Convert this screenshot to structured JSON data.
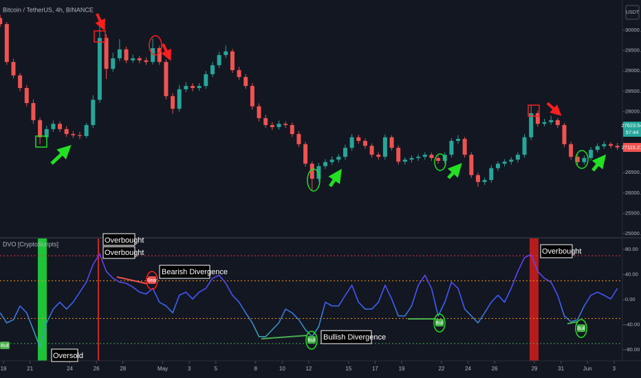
{
  "header": {
    "symbol": "Bitcoin / TetherUS, 4h, BINANCE",
    "currency": "USDT",
    "price_labels": [
      "27623.54",
      "57:44",
      "27115.21"
    ]
  },
  "chart_data": [
    {
      "type": "candlestick",
      "up_color": "#26a69a",
      "down_color": "#ef5350",
      "x": [
        -0.25,
        0.25,
        0.75,
        1.25,
        1.75,
        2.25,
        2.75,
        3.25,
        3.75,
        4.25,
        4.75,
        5.25,
        5.75,
        6.25,
        6.75,
        7.25,
        7.75,
        8.25,
        8.75,
        9.25,
        9.75,
        10.25,
        10.75,
        11.25,
        11.75,
        12.25,
        12.75,
        13.25,
        13.75,
        14.25,
        14.75,
        15.25,
        15.75,
        16.25,
        16.75,
        17.25,
        17.75,
        18.25,
        18.75,
        19.25,
        19.75,
        20.25,
        20.75,
        21.25,
        21.75,
        22.25,
        22.75,
        23.25,
        23.75,
        24.25,
        24.75,
        25.25,
        25.75,
        26.25,
        26.75,
        27.25,
        27.75,
        28.25,
        28.75,
        29.25,
        29.75,
        30.25,
        30.75,
        31.25,
        31.75,
        32.25,
        32.75,
        33.25,
        33.75,
        34.25,
        34.75,
        35.25,
        35.75,
        36.25,
        36.75,
        37.25,
        37.75,
        38.25,
        38.75,
        39.25,
        39.75,
        40.25,
        40.75,
        41.25,
        41.75,
        42.25,
        42.75,
        43.25,
        43.75,
        44.25,
        44.75,
        45.25,
        45.75,
        46.25
      ],
      "open": [
        30300,
        30150,
        29220,
        28890,
        28580,
        28210,
        27790,
        27370,
        27570,
        27700,
        27570,
        27450,
        27420,
        27400,
        27670,
        28290,
        29810,
        29050,
        29310,
        29530,
        29260,
        29310,
        29260,
        29220,
        29560,
        29220,
        28380,
        28070,
        28550,
        28630,
        28580,
        28630,
        28920,
        29140,
        29390,
        29480,
        29020,
        28850,
        28630,
        28130,
        27840,
        27670,
        27620,
        27700,
        27670,
        27450,
        27200,
        26720,
        26350,
        26660,
        26760,
        26820,
        26890,
        27110,
        27370,
        27280,
        27160,
        26940,
        26890,
        27370,
        27110,
        26770,
        26820,
        26860,
        26890,
        26940,
        26860,
        26790,
        26940,
        27280,
        27330,
        26940,
        26440,
        26270,
        26320,
        26610,
        26720,
        26770,
        26820,
        26940,
        27370,
        27960,
        27700,
        27740,
        27790,
        27670,
        27200,
        26890,
        26760,
        26860,
        27060,
        27150,
        27200,
        27160
      ],
      "high": [
        30380,
        30200,
        29300,
        28950,
        28650,
        28300,
        27850,
        27650,
        27780,
        27760,
        27640,
        27520,
        27500,
        27720,
        28400,
        30250,
        29900,
        29450,
        29780,
        29600,
        29400,
        29370,
        29330,
        29800,
        29620,
        29280,
        28450,
        28650,
        28720,
        28700,
        28700,
        29000,
        29220,
        29470,
        29620,
        29540,
        29100,
        28920,
        28700,
        28200,
        27920,
        27740,
        27780,
        27760,
        27730,
        27520,
        27260,
        26780,
        26740,
        26830,
        26900,
        26960,
        27190,
        27450,
        27430,
        27340,
        27220,
        27000,
        27440,
        27420,
        27170,
        26880,
        26920,
        26950,
        27000,
        26990,
        26920,
        27000,
        27350,
        27420,
        27380,
        27000,
        26500,
        26380,
        26680,
        26780,
        26830,
        26880,
        27000,
        27450,
        28150,
        28020,
        27820,
        27900,
        27840,
        27720,
        27260,
        26940,
        26920,
        27130,
        27220,
        27270,
        27250,
        27230
      ],
      "low": [
        30080,
        29150,
        28820,
        28500,
        28130,
        27700,
        27200,
        27300,
        27500,
        27500,
        27380,
        27350,
        27330,
        27350,
        27600,
        28220,
        28800,
        28980,
        29240,
        29190,
        29200,
        29190,
        29150,
        29160,
        29150,
        28300,
        27950,
        28000,
        28480,
        28500,
        28510,
        28560,
        28850,
        29070,
        29320,
        28950,
        28780,
        28560,
        28050,
        27760,
        27600,
        27550,
        27560,
        27600,
        27380,
        27130,
        26650,
        26050,
        26280,
        26590,
        26690,
        26750,
        26820,
        27040,
        27210,
        27090,
        26870,
        26820,
        26820,
        27040,
        26700,
        26700,
        26750,
        26790,
        26820,
        26790,
        26720,
        26720,
        26870,
        27210,
        26870,
        26370,
        26150,
        26200,
        26250,
        26540,
        26650,
        26700,
        26750,
        26870,
        27300,
        27630,
        27640,
        27680,
        27600,
        27130,
        26820,
        26690,
        26700,
        26800,
        27000,
        27090,
        27100,
        27060
      ],
      "close": [
        30150,
        29220,
        28890,
        28580,
        28210,
        27790,
        27370,
        27570,
        27700,
        27570,
        27450,
        27420,
        27400,
        27670,
        28290,
        29810,
        29050,
        29310,
        29530,
        29260,
        29310,
        29260,
        29220,
        29560,
        29220,
        28380,
        28070,
        28550,
        28630,
        28580,
        28630,
        28920,
        29140,
        29390,
        29480,
        29020,
        28850,
        28630,
        28130,
        27840,
        27670,
        27620,
        27700,
        27670,
        27450,
        27200,
        26720,
        26350,
        26660,
        26760,
        26820,
        26890,
        27110,
        27370,
        27280,
        27160,
        26940,
        26890,
        27370,
        27110,
        26770,
        26820,
        26860,
        26890,
        26940,
        26860,
        26790,
        26940,
        27280,
        27330,
        26940,
        26440,
        26270,
        26320,
        26610,
        26720,
        26770,
        26820,
        26940,
        27370,
        27960,
        27700,
        27740,
        27790,
        27670,
        27200,
        26890,
        26760,
        26860,
        27060,
        27150,
        27200,
        27160,
        27120
      ],
      "xlim": [
        -0.26,
        46.63
      ],
      "ylim": [
        24916,
        30743
      ],
      "yticks": [
        {
          "value": 30000,
          "label": "30000.00"
        },
        {
          "value": 29500,
          "label": "29500.00"
        },
        {
          "value": 29000,
          "label": "29000.00"
        },
        {
          "value": 28500,
          "label": "28500.00"
        },
        {
          "value": 28000,
          "label": "28000.00"
        },
        {
          "value": 26500,
          "label": "26500.00"
        },
        {
          "value": 26000,
          "label": "26000.00"
        },
        {
          "value": 25500,
          "label": "25500.00"
        },
        {
          "value": 25000,
          "label": "25000.00"
        }
      ]
    },
    {
      "type": "line",
      "title": "DVO [CryptoScripts]",
      "x": [
        -0.25,
        0.25,
        0.75,
        1.25,
        1.75,
        2.25,
        2.75,
        3.25,
        3.75,
        4.25,
        4.75,
        5.25,
        5.75,
        6.25,
        6.75,
        7.25,
        7.75,
        8.25,
        8.75,
        9.25,
        9.75,
        10.25,
        10.75,
        11.25,
        11.75,
        12.25,
        12.75,
        13.25,
        13.75,
        14.25,
        14.75,
        15.25,
        15.75,
        16.25,
        16.75,
        17.25,
        17.75,
        18.25,
        18.75,
        19.25,
        19.75,
        20.25,
        20.75,
        21.25,
        21.75,
        22.25,
        22.75,
        23.25,
        23.75,
        24.25,
        24.75,
        25.25,
        25.75,
        26.25,
        26.75,
        27.25,
        27.75,
        28.25,
        28.75,
        29.25,
        29.75,
        30.25,
        30.75,
        31.25,
        31.75,
        32.25,
        32.75,
        33.25,
        33.75,
        34.25,
        34.75,
        35.25,
        35.75,
        36.25,
        36.75,
        37.25,
        37.75,
        38.25,
        38.75,
        39.25,
        39.75,
        40.25,
        40.75,
        41.25,
        41.75,
        42.25,
        42.75,
        43.25,
        43.75,
        44.25,
        44.75,
        45.25,
        45.75,
        46.25
      ],
      "series": [
        {
          "colors": [
            "#8a2be2",
            "#3d5afe",
            "#33d17a"
          ],
          "values": [
            -21,
            -37,
            -32,
            -10,
            -21,
            -48,
            -76,
            -37,
            -15,
            -4,
            -15,
            -4,
            12,
            28,
            56,
            73,
            45,
            34,
            28,
            26,
            20,
            12,
            9,
            18,
            -4,
            -10,
            -21,
            7,
            12,
            1,
            12,
            18,
            34,
            39,
            26,
            7,
            -4,
            -21,
            -37,
            -59,
            -59,
            -48,
            -37,
            -15,
            -21,
            -32,
            -48,
            -59,
            -43,
            -4,
            -10,
            -10,
            7,
            23,
            -4,
            -15,
            -15,
            -4,
            23,
            1,
            -26,
            -26,
            -10,
            23,
            39,
            18,
            -26,
            -4,
            28,
            18,
            -15,
            -26,
            -37,
            -21,
            -4,
            7,
            -4,
            18,
            45,
            67,
            72,
            45,
            34,
            28,
            7,
            -26,
            -35,
            -32,
            -10,
            7,
            12,
            7,
            1,
            18
          ]
        }
      ],
      "xlim": [
        -0.26,
        46.63
      ],
      "ylim": [
        -97.5,
        97.5
      ],
      "yticks": [
        {
          "value": 80,
          "label": "80.00"
        },
        {
          "value": 40,
          "label": "40.00"
        },
        {
          "value": 0,
          "label": "0.00"
        },
        {
          "value": -40,
          "label": "-40.00"
        },
        {
          "value": -80,
          "label": "-80.00"
        }
      ],
      "levels": [
        {
          "value": 70,
          "color": "#f23645"
        },
        {
          "value": 30,
          "color": "#ff9800"
        },
        {
          "value": -30,
          "color": "#ff9800"
        },
        {
          "value": -70,
          "color": "#4caf50"
        }
      ],
      "xticks": [
        {
          "value": 0,
          "label": "19"
        },
        {
          "value": 2,
          "label": "21"
        },
        {
          "value": 5,
          "label": "24"
        },
        {
          "value": 7,
          "label": "26"
        },
        {
          "value": 9,
          "label": "28"
        },
        {
          "value": 12,
          "label": "May"
        },
        {
          "value": 14,
          "label": "3"
        },
        {
          "value": 16,
          "label": "5"
        },
        {
          "value": 19,
          "label": "8"
        },
        {
          "value": 21,
          "label": "10"
        },
        {
          "value": 23,
          "label": "12"
        },
        {
          "value": 26,
          "label": "15"
        },
        {
          "value": 28,
          "label": "17"
        },
        {
          "value": 30,
          "label": "19"
        },
        {
          "value": 33,
          "label": "22"
        },
        {
          "value": 35,
          "label": "24"
        },
        {
          "value": 37,
          "label": "26"
        },
        {
          "value": 40,
          "label": "29"
        },
        {
          "value": 42,
          "label": "31"
        },
        {
          "value": 44,
          "label": "Jun"
        },
        {
          "value": 46,
          "label": "3"
        }
      ],
      "annotations": [
        "Overbought",
        "Overbought",
        "Bearish Divergence",
        "Bullish Divergence",
        "Overbought",
        "Oversold",
        "Bull",
        "Bull",
        "Bull",
        "Bull",
        "Bear"
      ]
    }
  ]
}
